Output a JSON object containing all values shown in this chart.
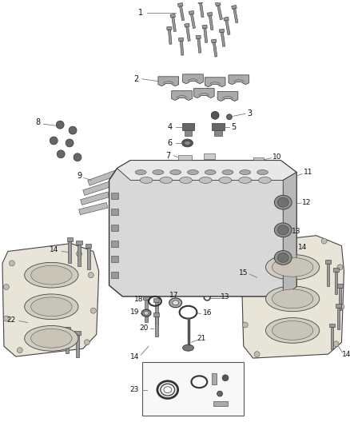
{
  "bg_color": "#ffffff",
  "fig_width": 4.38,
  "fig_height": 5.33,
  "dpi": 100,
  "dark": "#111111",
  "gray": "#666666",
  "light_gray": "#aaaaaa",
  "gasket_color": "#dddddd",
  "head_color": "#c0c0c0",
  "bolt_color": "#888888",
  "line_color": "#555555"
}
